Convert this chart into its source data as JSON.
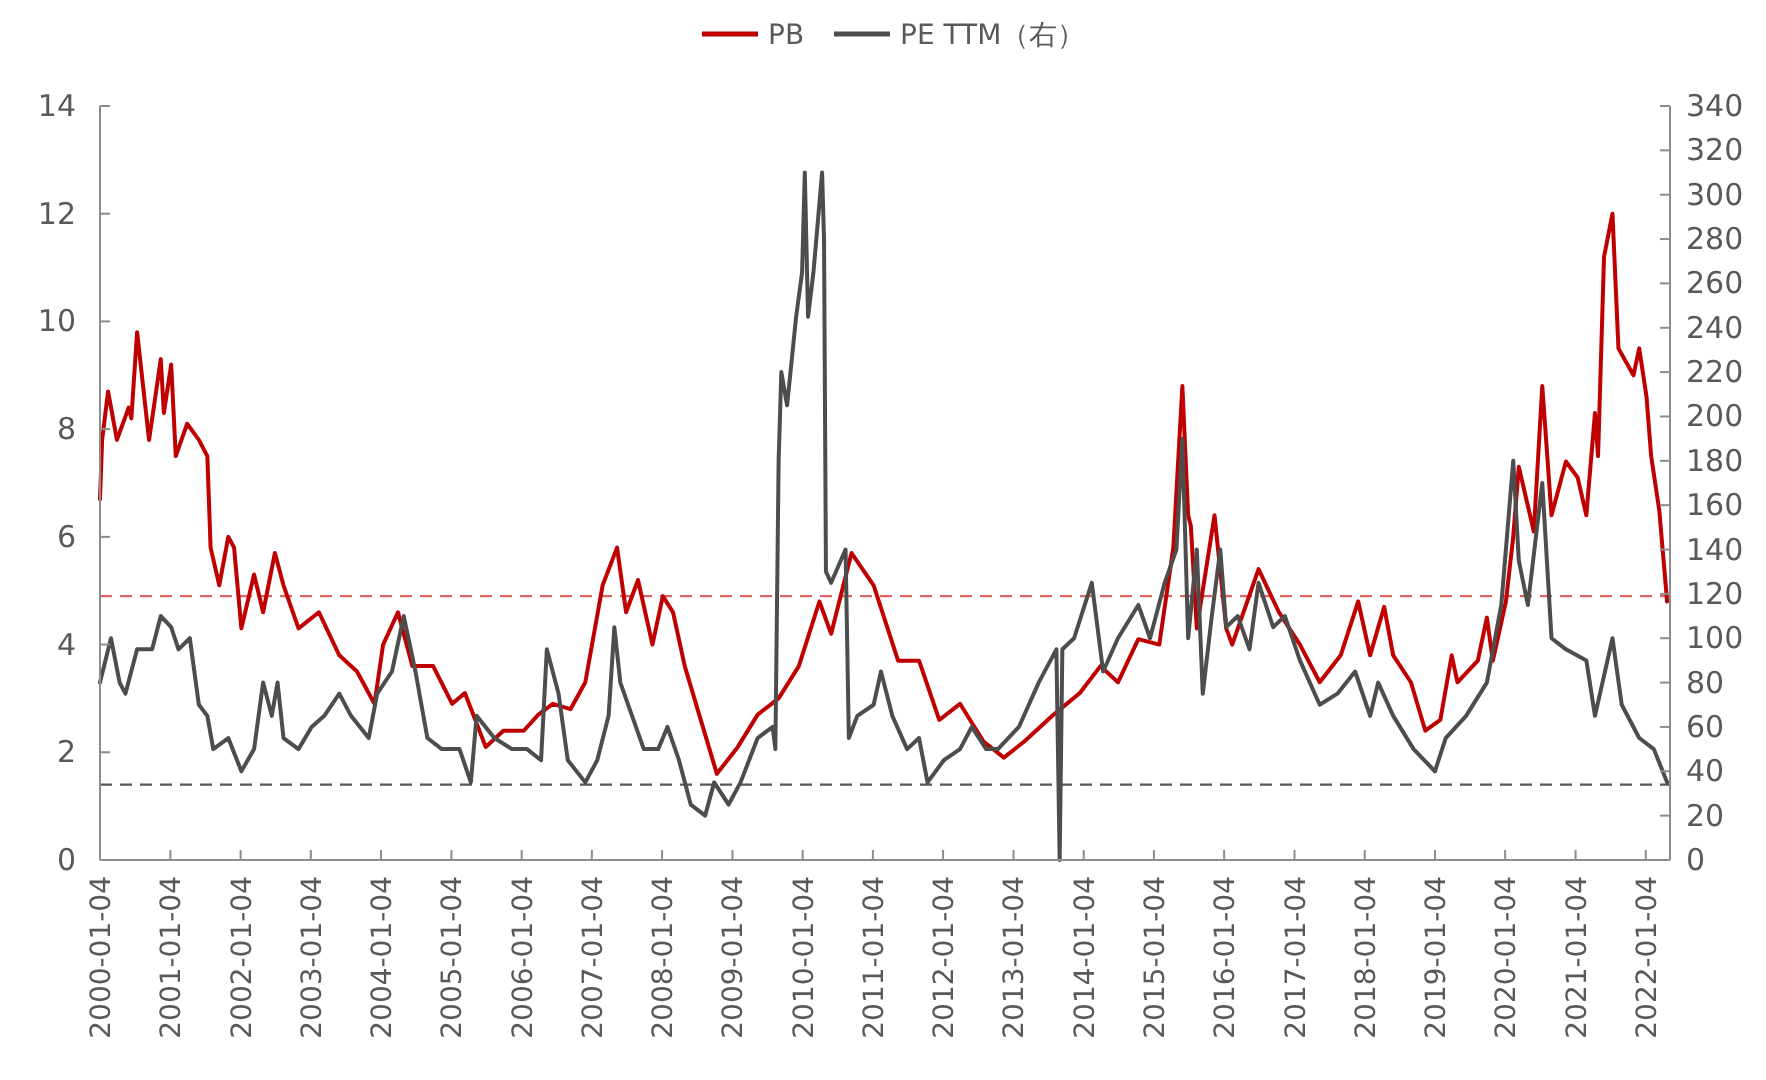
{
  "chart_data": {
    "type": "line",
    "legend": "top",
    "grid": false,
    "marker": "none",
    "line_style": "solid",
    "xlim": [
      "2000-01-04",
      "2022-05-10"
    ],
    "xticks": [
      "2000-01-04",
      "2001-01-04",
      "2002-01-04",
      "2003-01-04",
      "2004-01-04",
      "2005-01-04",
      "2006-01-04",
      "2007-01-04",
      "2008-01-04",
      "2009-01-04",
      "2010-01-04",
      "2011-01-04",
      "2012-01-04",
      "2013-01-04",
      "2014-01-04",
      "2015-01-04",
      "2016-01-04",
      "2017-01-04",
      "2018-01-04",
      "2019-01-04",
      "2020-01-04",
      "2021-01-04",
      "2022-01-04"
    ],
    "ylim": [
      0,
      14
    ],
    "yticks": [
      0,
      2,
      4,
      6,
      8,
      10,
      12,
      14
    ],
    "y2lim": [
      0,
      340
    ],
    "y2ticks": [
      0,
      20,
      40,
      60,
      80,
      100,
      120,
      140,
      160,
      180,
      200,
      220,
      240,
      260,
      280,
      300,
      320,
      340
    ],
    "ref_lines": [
      {
        "axis": "y",
        "value": 4.9,
        "color": "#e06666",
        "line_style": "dashed"
      },
      {
        "axis": "y2",
        "value": 34,
        "color": "#555555",
        "line_style": "dashed"
      }
    ],
    "series": [
      {
        "name": "PB",
        "color": "#c00000",
        "x": [
          "2000-01-04",
          "2000-01-15",
          "2000-02-15",
          "2000-04-01",
          "2000-06-01",
          "2000-06-15",
          "2000-07-15",
          "2000-09-15",
          "2000-11-15",
          "2000-12-01",
          "2001-01-08",
          "2001-02-01",
          "2001-04-01",
          "2001-06-01",
          "2001-07-15",
          "2001-08-01",
          "2001-09-15",
          "2001-11-01",
          "2001-12-01",
          "2002-01-08",
          "2002-03-15",
          "2002-05-01",
          "2002-07-01",
          "2002-08-15",
          "2002-11-01",
          "2003-02-15",
          "2003-06-01",
          "2003-09-01",
          "2003-12-01",
          "2004-01-15",
          "2004-04-01",
          "2004-06-15",
          "2004-10-01",
          "2005-01-08",
          "2005-03-15",
          "2005-07-01",
          "2005-10-01",
          "2006-01-15",
          "2006-04-01",
          "2006-06-15",
          "2006-09-15",
          "2006-12-01",
          "2007-03-01",
          "2007-05-15",
          "2007-07-01",
          "2007-09-01",
          "2007-11-15",
          "2008-01-08",
          "2008-03-01",
          "2008-05-01",
          "2008-07-15",
          "2008-10-15",
          "2009-02-01",
          "2009-05-15",
          "2009-09-01",
          "2009-12-15",
          "2010-04-01",
          "2010-06-01",
          "2010-09-15",
          "2011-01-08",
          "2011-05-15",
          "2011-09-01",
          "2011-12-15",
          "2012-04-01",
          "2012-08-01",
          "2012-11-15",
          "2013-03-01",
          "2013-08-01",
          "2013-12-15",
          "2014-04-01",
          "2014-07-01",
          "2014-10-15",
          "2015-02-01",
          "2015-04-15",
          "2015-06-01",
          "2015-07-01",
          "2015-07-15",
          "2015-08-15",
          "2015-11-15",
          "2016-01-15",
          "2016-02-15",
          "2016-07-01",
          "2016-10-15",
          "2017-02-01",
          "2017-05-15",
          "2017-09-01",
          "2017-12-01",
          "2018-02-01",
          "2018-04-15",
          "2018-06-01",
          "2018-09-01",
          "2018-11-15",
          "2019-02-01",
          "2019-04-01",
          "2019-05-01",
          "2019-08-15",
          "2019-10-01",
          "2019-11-01",
          "2020-01-08",
          "2020-02-15",
          "2020-03-15",
          "2020-06-01",
          "2020-07-15",
          "2020-09-01",
          "2020-11-15",
          "2021-01-15",
          "2021-03-01",
          "2021-04-15",
          "2021-05-01",
          "2021-06-01",
          "2021-07-15",
          "2021-08-15",
          "2021-11-01",
          "2021-12-01",
          "2022-01-08",
          "2022-02-01",
          "2022-03-15",
          "2022-04-25"
        ],
        "values": [
          6.7,
          7.8,
          8.7,
          7.8,
          8.4,
          8.2,
          9.8,
          7.8,
          9.3,
          8.3,
          9.2,
          7.5,
          8.1,
          7.8,
          7.5,
          5.8,
          5.1,
          6.0,
          5.8,
          4.3,
          5.3,
          4.6,
          5.7,
          5.1,
          4.3,
          4.6,
          3.8,
          3.5,
          2.9,
          4.0,
          4.6,
          3.6,
          3.6,
          2.9,
          3.1,
          2.1,
          2.4,
          2.4,
          2.7,
          2.9,
          2.8,
          3.3,
          5.1,
          5.8,
          4.6,
          5.2,
          4.0,
          4.9,
          4.6,
          3.6,
          2.7,
          1.6,
          2.1,
          2.7,
          3.0,
          3.6,
          4.8,
          4.2,
          5.7,
          5.1,
          3.7,
          3.7,
          2.6,
          2.9,
          2.2,
          1.9,
          2.2,
          2.7,
          3.1,
          3.6,
          3.3,
          4.1,
          4.0,
          5.8,
          8.8,
          6.4,
          6.2,
          4.3,
          6.4,
          4.3,
          4.0,
          5.4,
          4.6,
          4.0,
          3.3,
          3.8,
          4.8,
          3.8,
          4.7,
          3.8,
          3.3,
          2.4,
          2.6,
          3.8,
          3.3,
          3.7,
          4.5,
          3.7,
          4.8,
          6.0,
          7.3,
          6.1,
          8.8,
          6.4,
          7.4,
          7.1,
          6.4,
          8.3,
          7.5,
          11.2,
          12.0,
          9.5,
          9.0,
          9.5,
          8.6,
          7.5,
          6.5,
          4.8
        ]
      },
      {
        "name": "PE TTM（右）",
        "color": "#4d4d4d",
        "axis": "y2",
        "x": [
          "2000-01-04",
          "2000-03-01",
          "2000-04-15",
          "2000-05-15",
          "2000-07-15",
          "2000-10-01",
          "2000-11-15",
          "2001-01-08",
          "2001-02-15",
          "2001-04-15",
          "2001-06-01",
          "2001-07-15",
          "2001-08-15",
          "2001-11-01",
          "2002-01-08",
          "2002-03-15",
          "2002-05-01",
          "2002-06-15",
          "2002-07-15",
          "2002-08-15",
          "2002-11-01",
          "2003-01-08",
          "2003-03-15",
          "2003-06-01",
          "2003-08-01",
          "2003-11-01",
          "2003-12-15",
          "2004-03-01",
          "2004-05-01",
          "2004-07-01",
          "2004-09-01",
          "2004-11-15",
          "2005-02-15",
          "2005-04-15",
          "2005-05-15",
          "2005-08-15",
          "2005-11-15",
          "2006-02-01",
          "2006-04-15",
          "2006-05-15",
          "2006-07-15",
          "2006-09-01",
          "2006-12-01",
          "2007-02-01",
          "2007-04-01",
          "2007-05-01",
          "2007-06-01",
          "2007-08-01",
          "2007-10-01",
          "2007-12-15",
          "2008-02-01",
          "2008-04-01",
          "2008-06-01",
          "2008-08-15",
          "2008-10-01",
          "2008-12-15",
          "2009-02-15",
          "2009-05-15",
          "2009-08-01",
          "2009-08-15",
          "2009-09-01",
          "2009-09-15",
          "2009-10-15",
          "2009-12-01",
          "2010-01-01",
          "2010-01-15",
          "2010-02-01",
          "2010-03-01",
          "2010-04-15",
          "2010-04-25",
          "2010-05-05",
          "2010-06-01",
          "2010-08-15",
          "2010-09-01",
          "2010-10-15",
          "2011-01-08",
          "2011-02-15",
          "2011-04-15",
          "2011-07-01",
          "2011-09-01",
          "2011-10-15",
          "2012-01-08",
          "2012-04-01",
          "2012-06-01",
          "2012-08-15",
          "2012-10-15",
          "2013-02-01",
          "2013-05-15",
          "2013-08-15",
          "2013-09-01",
          "2013-09-15",
          "2013-11-15",
          "2014-02-15",
          "2014-04-15",
          "2014-07-01",
          "2014-10-15",
          "2014-12-15",
          "2015-03-01",
          "2015-05-01",
          "2015-06-01",
          "2015-07-01",
          "2015-08-15",
          "2015-09-15",
          "2015-11-01",
          "2015-12-15",
          "2016-01-15",
          "2016-03-15",
          "2016-05-15",
          "2016-07-01",
          "2016-09-15",
          "2016-11-15",
          "2017-02-01",
          "2017-05-15",
          "2017-08-15",
          "2017-11-15",
          "2018-02-01",
          "2018-03-15",
          "2018-06-01",
          "2018-09-15",
          "2019-01-04",
          "2019-03-01",
          "2019-06-15",
          "2019-10-01",
          "2019-12-15",
          "2020-02-15",
          "2020-03-15",
          "2020-05-01",
          "2020-07-15",
          "2020-09-01",
          "2020-11-15",
          "2021-03-01",
          "2021-04-15",
          "2021-07-15",
          "2021-09-01",
          "2021-12-01",
          "2022-02-15",
          "2022-04-25"
        ],
        "values": [
          80,
          100,
          80,
          75,
          95,
          95,
          110,
          105,
          95,
          100,
          70,
          65,
          50,
          55,
          40,
          50,
          80,
          65,
          80,
          55,
          50,
          60,
          65,
          75,
          65,
          55,
          75,
          85,
          110,
          85,
          55,
          50,
          50,
          35,
          65,
          55,
          50,
          50,
          45,
          95,
          75,
          45,
          35,
          45,
          65,
          105,
          80,
          65,
          50,
          50,
          60,
          45,
          25,
          20,
          35,
          25,
          35,
          55,
          60,
          50,
          180,
          220,
          205,
          245,
          265,
          310,
          245,
          265,
          310,
          280,
          130,
          125,
          140,
          55,
          65,
          70,
          85,
          65,
          50,
          55,
          35,
          45,
          50,
          60,
          50,
          50,
          60,
          80,
          95,
          0,
          95,
          100,
          125,
          85,
          100,
          115,
          100,
          125,
          140,
          190,
          100,
          140,
          75,
          110,
          140,
          105,
          110,
          95,
          125,
          105,
          110,
          90,
          70,
          75,
          85,
          65,
          80,
          65,
          50,
          40,
          55,
          65,
          80,
          115,
          180,
          135,
          115,
          170,
          100,
          95,
          90,
          65,
          100,
          70,
          55,
          50,
          35
        ]
      }
    ]
  }
}
